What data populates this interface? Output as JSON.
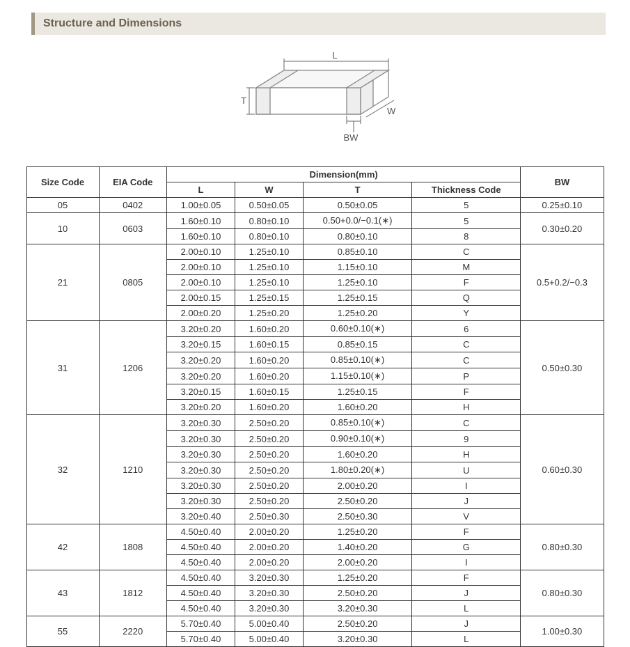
{
  "title": "Structure and Dimensions",
  "diagram": {
    "labels": {
      "L": "L",
      "W": "W",
      "T": "T",
      "BW": "BW"
    },
    "stroke": "#888888",
    "fill": "#ffffff"
  },
  "table": {
    "headers": {
      "size_code": "Size Code",
      "eia_code": "EIA Code",
      "dimension_group": "Dimension(mm)",
      "L": "L",
      "W": "W",
      "T": "T",
      "thickness_code": "Thickness  Code",
      "BW": "BW"
    },
    "groups": [
      {
        "size": "05",
        "eia": "0402",
        "bw": "0.25±0.10",
        "rows": [
          {
            "L": "1.00±0.05",
            "W": "0.50±0.05",
            "T": "0.50±0.05",
            "tk": "5"
          }
        ]
      },
      {
        "size": "10",
        "eia": "0603",
        "bw": "0.30±0.20",
        "rows": [
          {
            "L": "1.60±0.10",
            "W": "0.80±0.10",
            "T": "0.50+0.0/−0.1(∗)",
            "tk": "5"
          },
          {
            "L": "1.60±0.10",
            "W": "0.80±0.10",
            "T": "0.80±0.10",
            "tk": "8"
          }
        ]
      },
      {
        "size": "21",
        "eia": "0805",
        "bw": "0.5+0.2/−0.3",
        "rows": [
          {
            "L": "2.00±0.10",
            "W": "1.25±0.10",
            "T": "0.85±0.10",
            "tk": "C"
          },
          {
            "L": "2.00±0.10",
            "W": "1.25±0.10",
            "T": "1.15±0.10",
            "tk": "M"
          },
          {
            "L": "2.00±0.10",
            "W": "1.25±0.10",
            "T": "1.25±0.10",
            "tk": "F"
          },
          {
            "L": "2.00±0.15",
            "W": "1.25±0.15",
            "T": "1.25±0.15",
            "tk": "Q"
          },
          {
            "L": "2.00±0.20",
            "W": "1.25±0.20",
            "T": "1.25±0.20",
            "tk": "Y"
          }
        ]
      },
      {
        "size": "31",
        "eia": "1206",
        "bw": "0.50±0.30",
        "rows": [
          {
            "L": "3.20±0.20",
            "W": "1.60±0.20",
            "T": "0.60±0.10(∗)",
            "tk": "6"
          },
          {
            "L": "3.20±0.15",
            "W": "1.60±0.15",
            "T": "0.85±0.15",
            "tk": "C"
          },
          {
            "L": "3.20±0.20",
            "W": "1.60±0.20",
            "T": "0.85±0.10(∗)",
            "tk": "C"
          },
          {
            "L": "3.20±0.20",
            "W": "1.60±0.20",
            "T": "1.15±0.10(∗)",
            "tk": "P"
          },
          {
            "L": "3.20±0.15",
            "W": "1.60±0.15",
            "T": "1.25±0.15",
            "tk": "F"
          },
          {
            "L": "3.20±0.20",
            "W": "1.60±0.20",
            "T": "1.60±0.20",
            "tk": "H"
          }
        ]
      },
      {
        "size": "32",
        "eia": "1210",
        "bw": "0.60±0.30",
        "rows": [
          {
            "L": "3.20±0.30",
            "W": "2.50±0.20",
            "T": "0.85±0.10(∗)",
            "tk": "C"
          },
          {
            "L": "3.20±0.30",
            "W": "2.50±0.20",
            "T": "0.90±0.10(∗)",
            "tk": "9"
          },
          {
            "L": "3.20±0.30",
            "W": "2.50±0.20",
            "T": "1.60±0.20",
            "tk": "H"
          },
          {
            "L": "3.20±0.30",
            "W": "2.50±0.20",
            "T": "1.80±0.20(∗)",
            "tk": "U"
          },
          {
            "L": "3.20±0.30",
            "W": "2.50±0.20",
            "T": "2.00±0.20",
            "tk": "I"
          },
          {
            "L": "3.20±0.30",
            "W": "2.50±0.20",
            "T": "2.50±0.20",
            "tk": "J"
          },
          {
            "L": "3.20±0.40",
            "W": "2.50±0.30",
            "T": "2.50±0.30",
            "tk": "V"
          }
        ]
      },
      {
        "size": "42",
        "eia": "1808",
        "bw": "0.80±0.30",
        "rows": [
          {
            "L": "4.50±0.40",
            "W": "2.00±0.20",
            "T": "1.25±0.20",
            "tk": "F"
          },
          {
            "L": "4.50±0.40",
            "W": "2.00±0.20",
            "T": "1.40±0.20",
            "tk": "G"
          },
          {
            "L": "4.50±0.40",
            "W": "2.00±0.20",
            "T": "2.00±0.20",
            "tk": "I"
          }
        ]
      },
      {
        "size": "43",
        "eia": "1812",
        "bw": "0.80±0.30",
        "rows": [
          {
            "L": "4.50±0.40",
            "W": "3.20±0.30",
            "T": "1.25±0.20",
            "tk": "F"
          },
          {
            "L": "4.50±0.40",
            "W": "3.20±0.30",
            "T": "2.50±0.20",
            "tk": "J"
          },
          {
            "L": "4.50±0.40",
            "W": "3.20±0.30",
            "T": "3.20±0.30",
            "tk": "L"
          }
        ]
      },
      {
        "size": "55",
        "eia": "2220",
        "bw": "1.00±0.30",
        "rows": [
          {
            "L": "5.70±0.40",
            "W": "5.00±0.40",
            "T": "2.50±0.20",
            "tk": "J"
          },
          {
            "L": "5.70±0.40",
            "W": "5.00±0.40",
            "T": "3.20±0.30",
            "tk": "L"
          }
        ]
      }
    ]
  }
}
